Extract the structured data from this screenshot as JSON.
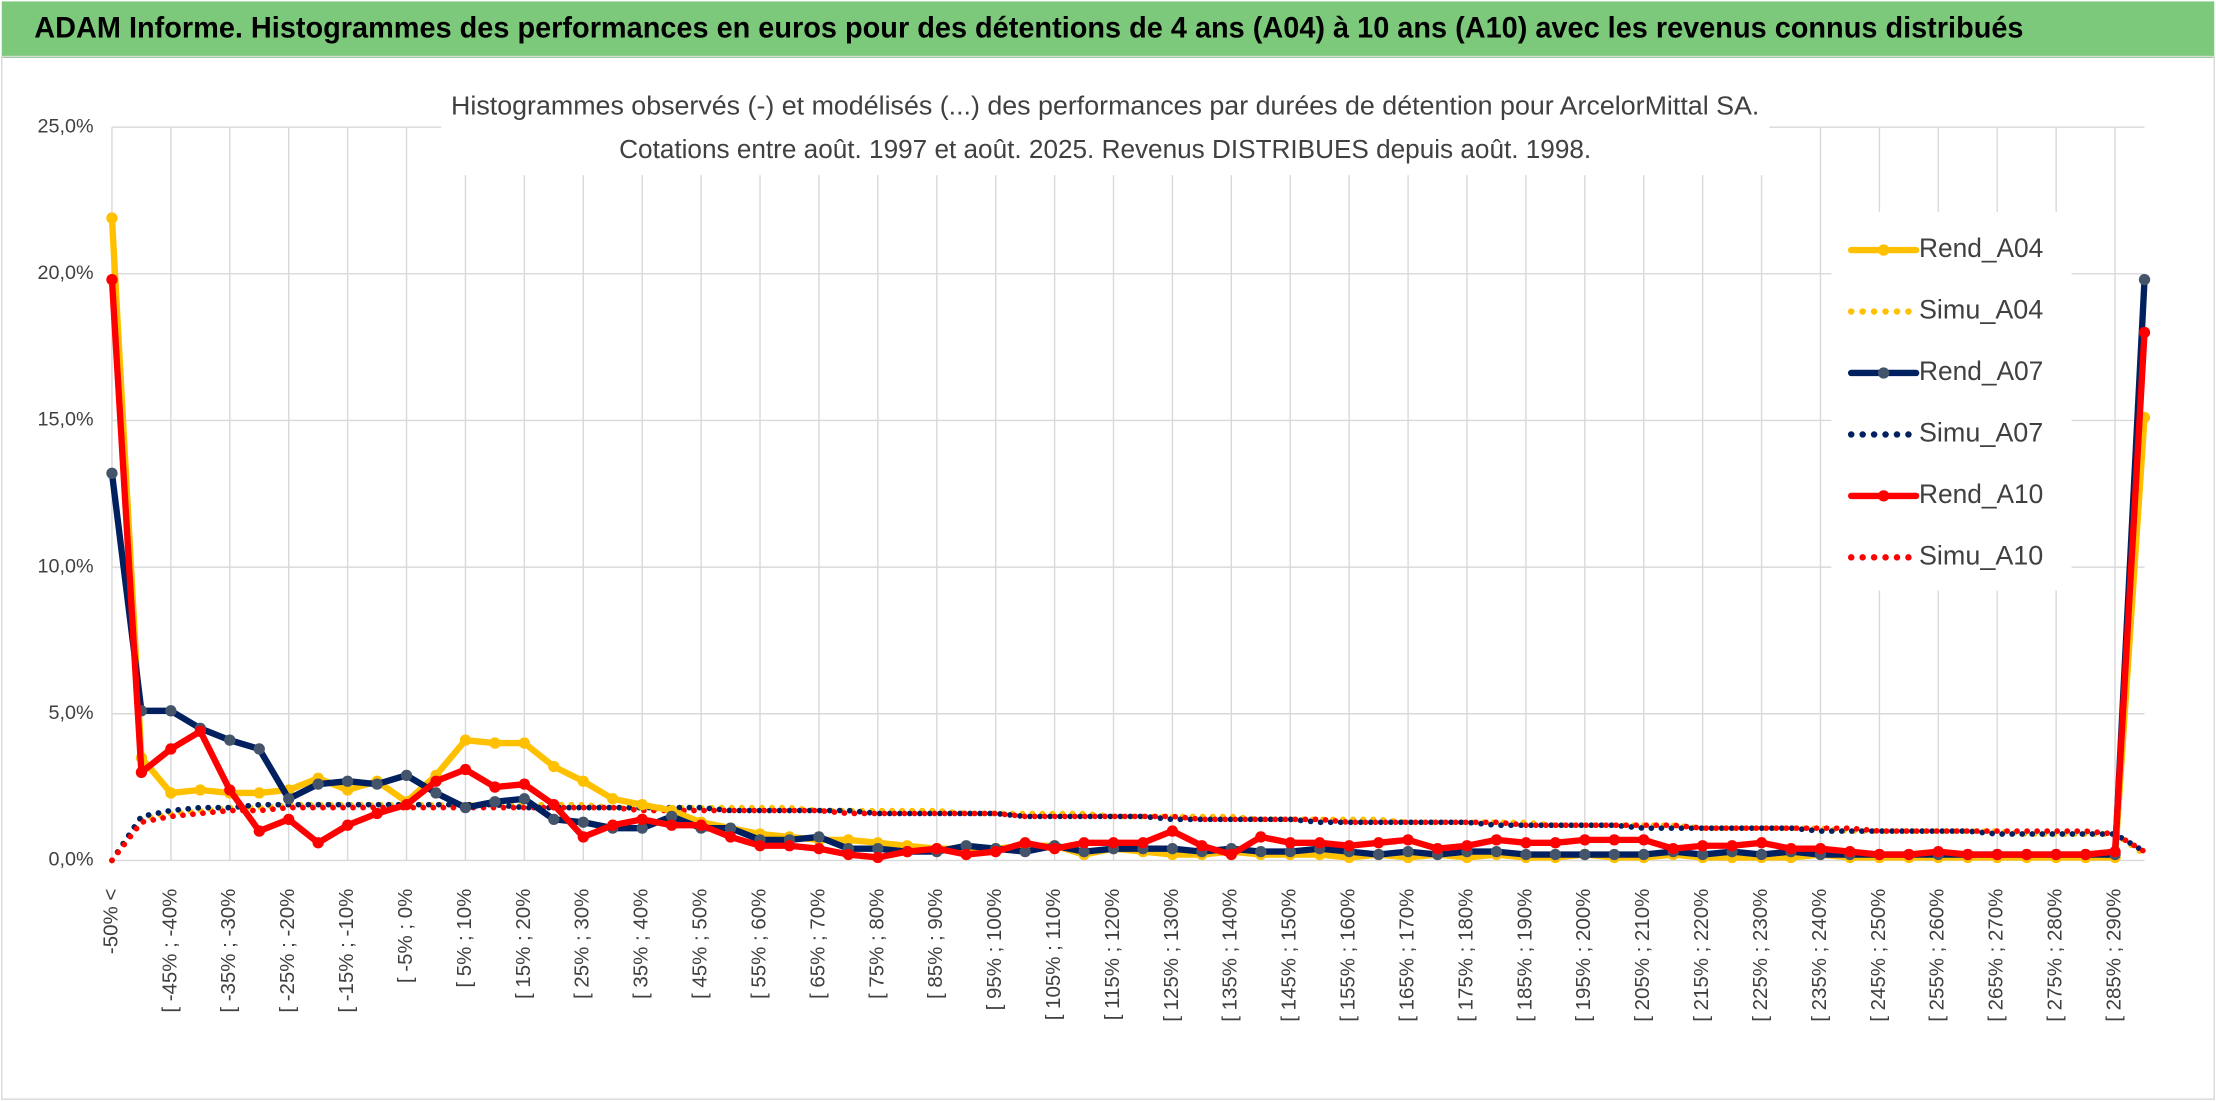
{
  "header": {
    "title": "ADAM Informe. Histogrammes des performances en euros pour des détentions de 4 ans (A04) à 10 ans (A10) avec les revenus connus distribués"
  },
  "chart_data": {
    "type": "line",
    "title": "Histogrammes observés (-) et modélisés (...) des performances par durées de détention pour ArcelorMittal SA.",
    "subtitle": "Cotations entre août. 1997 et août. 2025. Revenus DISTRIBUES depuis août. 1998.",
    "categories": [
      "-50% <",
      null,
      "[ -45% ; -40%",
      null,
      "[ -35% ; -30%",
      null,
      "[ -25% ; -20%",
      null,
      "[ -15% ; -10%",
      null,
      "[ -5% ; 0%",
      null,
      "[ 5% ; 10%",
      null,
      "[ 15% ; 20%",
      null,
      "[ 25% ; 30%",
      null,
      "[ 35% ; 40%",
      null,
      "[ 45% ; 50%",
      null,
      "[ 55% ; 60%",
      null,
      "[ 65% ; 70%",
      null,
      "[ 75% ; 80%",
      null,
      "[ 85% ; 90%",
      null,
      "[ 95% ; 100%",
      null,
      "[ 105% ; 110%",
      null,
      "[ 115% ; 120%",
      null,
      "[ 125% ; 130%",
      null,
      "[ 135% ; 140%",
      null,
      "[ 145% ; 150%",
      null,
      "[ 155% ; 160%",
      null,
      "[ 165% ; 170%",
      null,
      "[ 175% ; 180%",
      null,
      "[ 185% ; 190%",
      null,
      "[ 195% ; 200%",
      null,
      "[ 205% ; 210%",
      null,
      "[ 215% ; 220%",
      null,
      "[ 225% ; 230%",
      null,
      "[ 235% ; 240%",
      null,
      "[ 245% ; 250%",
      null,
      "[ 255% ; 260%",
      null,
      "[ 265% ; 270%",
      null,
      "[ 275% ; 280%",
      null,
      "[ 285% ; 290%",
      null
    ],
    "series": [
      {
        "name": "Rend_A04",
        "color": "#ffc000",
        "marker": true,
        "dotted": false,
        "values": [
          21.9,
          3.5,
          2.3,
          2.4,
          2.3,
          2.3,
          2.4,
          2.8,
          2.4,
          2.7,
          2.0,
          2.9,
          4.1,
          4.0,
          4.0,
          3.2,
          2.7,
          2.1,
          1.9,
          1.7,
          1.3,
          1.1,
          0.9,
          0.8,
          0.7,
          0.7,
          0.6,
          0.5,
          0.4,
          0.4,
          0.4,
          0.5,
          0.5,
          0.2,
          0.4,
          0.3,
          0.2,
          0.2,
          0.3,
          0.2,
          0.2,
          0.2,
          0.1,
          0.2,
          0.1,
          0.2,
          0.1,
          0.2,
          0.1,
          0.1,
          0.2,
          0.1,
          0.1,
          0.2,
          0.1,
          0.1,
          0.1,
          0.1,
          0.2,
          0.1,
          0.1,
          0.1,
          0.1,
          0.1,
          0.1,
          0.1,
          0.1,
          0.1,
          0.1,
          15.1
        ]
      },
      {
        "name": "Simu_A04",
        "color": "#ffc000",
        "marker": false,
        "dotted": true,
        "values": [
          0,
          1.4,
          1.6,
          1.7,
          1.8,
          1.8,
          1.9,
          1.9,
          1.9,
          1.9,
          1.9,
          1.9,
          1.9,
          1.9,
          1.9,
          1.9,
          1.9,
          1.8,
          1.8,
          1.8,
          1.8,
          1.8,
          1.8,
          1.8,
          1.7,
          1.7,
          1.7,
          1.7,
          1.7,
          1.6,
          1.6,
          1.6,
          1.6,
          1.6,
          1.5,
          1.5,
          1.5,
          1.5,
          1.5,
          1.4,
          1.4,
          1.4,
          1.4,
          1.4,
          1.3,
          1.3,
          1.3,
          1.3,
          1.3,
          1.2,
          1.2,
          1.2,
          1.2,
          1.2,
          1.1,
          1.1,
          1.1,
          1.1,
          1.1,
          1.0,
          1.0,
          1.0,
          1.0,
          1.0,
          1.0,
          0.9,
          0.9,
          0.9,
          0.9,
          0.2
        ]
      },
      {
        "name": "Rend_A07",
        "color": "#002060",
        "marker": true,
        "dotted": false,
        "values": [
          13.2,
          5.1,
          5.1,
          4.5,
          4.1,
          3.8,
          2.1,
          2.6,
          2.7,
          2.6,
          2.9,
          2.3,
          1.8,
          2.0,
          2.1,
          1.4,
          1.3,
          1.1,
          1.1,
          1.5,
          1.1,
          1.1,
          0.7,
          0.7,
          0.8,
          0.4,
          0.4,
          0.3,
          0.3,
          0.5,
          0.4,
          0.3,
          0.5,
          0.3,
          0.4,
          0.4,
          0.4,
          0.3,
          0.4,
          0.3,
          0.3,
          0.4,
          0.3,
          0.2,
          0.3,
          0.2,
          0.3,
          0.3,
          0.2,
          0.2,
          0.2,
          0.2,
          0.2,
          0.3,
          0.2,
          0.3,
          0.2,
          0.3,
          0.2,
          0.2,
          0.2,
          0.2,
          0.2,
          0.2,
          0.2,
          0.2,
          0.2,
          0.2,
          0.2,
          19.8
        ]
      },
      {
        "name": "Simu_A07",
        "color": "#002060",
        "marker": false,
        "dotted": true,
        "values": [
          0,
          1.5,
          1.7,
          1.8,
          1.8,
          1.9,
          1.9,
          1.9,
          1.9,
          1.9,
          1.9,
          1.9,
          1.9,
          1.9,
          1.8,
          1.8,
          1.8,
          1.8,
          1.8,
          1.8,
          1.8,
          1.7,
          1.7,
          1.7,
          1.7,
          1.7,
          1.6,
          1.6,
          1.6,
          1.6,
          1.6,
          1.5,
          1.5,
          1.5,
          1.5,
          1.5,
          1.4,
          1.4,
          1.4,
          1.4,
          1.4,
          1.3,
          1.3,
          1.3,
          1.3,
          1.3,
          1.3,
          1.2,
          1.2,
          1.2,
          1.2,
          1.2,
          1.1,
          1.1,
          1.1,
          1.1,
          1.1,
          1.1,
          1.0,
          1.0,
          1.0,
          1.0,
          1.0,
          1.0,
          0.9,
          0.9,
          0.9,
          0.9,
          0.9,
          0.3
        ]
      },
      {
        "name": "Rend_A10",
        "color": "#ff0000",
        "marker": true,
        "dotted": false,
        "values": [
          19.8,
          3.0,
          3.8,
          4.4,
          2.4,
          1.0,
          1.4,
          0.6,
          1.2,
          1.6,
          1.9,
          2.7,
          3.1,
          2.5,
          2.6,
          1.9,
          0.8,
          1.2,
          1.4,
          1.2,
          1.2,
          0.8,
          0.5,
          0.5,
          0.4,
          0.2,
          0.1,
          0.3,
          0.4,
          0.2,
          0.3,
          0.6,
          0.4,
          0.6,
          0.6,
          0.6,
          1.0,
          0.5,
          0.2,
          0.8,
          0.6,
          0.6,
          0.5,
          0.6,
          0.7,
          0.4,
          0.5,
          0.7,
          0.6,
          0.6,
          0.7,
          0.7,
          0.7,
          0.4,
          0.5,
          0.5,
          0.6,
          0.4,
          0.4,
          0.3,
          0.2,
          0.2,
          0.3,
          0.2,
          0.2,
          0.2,
          0.2,
          0.2,
          0.3,
          18.0
        ]
      },
      {
        "name": "Simu_A10",
        "color": "#ff0000",
        "marker": false,
        "dotted": true,
        "values": [
          0,
          1.3,
          1.5,
          1.6,
          1.7,
          1.7,
          1.8,
          1.8,
          1.8,
          1.8,
          1.8,
          1.8,
          1.8,
          1.8,
          1.8,
          1.8,
          1.8,
          1.8,
          1.7,
          1.7,
          1.7,
          1.7,
          1.7,
          1.7,
          1.7,
          1.6,
          1.6,
          1.6,
          1.6,
          1.6,
          1.6,
          1.5,
          1.5,
          1.5,
          1.5,
          1.5,
          1.5,
          1.4,
          1.4,
          1.4,
          1.4,
          1.4,
          1.3,
          1.3,
          1.3,
          1.3,
          1.3,
          1.3,
          1.2,
          1.2,
          1.2,
          1.2,
          1.2,
          1.2,
          1.1,
          1.1,
          1.1,
          1.1,
          1.1,
          1.1,
          1.0,
          1.0,
          1.0,
          1.0,
          1.0,
          1.0,
          1.0,
          1.0,
          0.9,
          0.3
        ]
      }
    ],
    "ylim": [
      0,
      25
    ],
    "yticks": [
      {
        "value": 0,
        "label": "0,0%"
      },
      {
        "value": 5,
        "label": "5,0%"
      },
      {
        "value": 10,
        "label": "10,0%"
      },
      {
        "value": 15,
        "label": "15,0%"
      },
      {
        "value": 20,
        "label": "20,0%"
      },
      {
        "value": 25,
        "label": "25,0%"
      }
    ],
    "grid": true,
    "legend": "right"
  }
}
